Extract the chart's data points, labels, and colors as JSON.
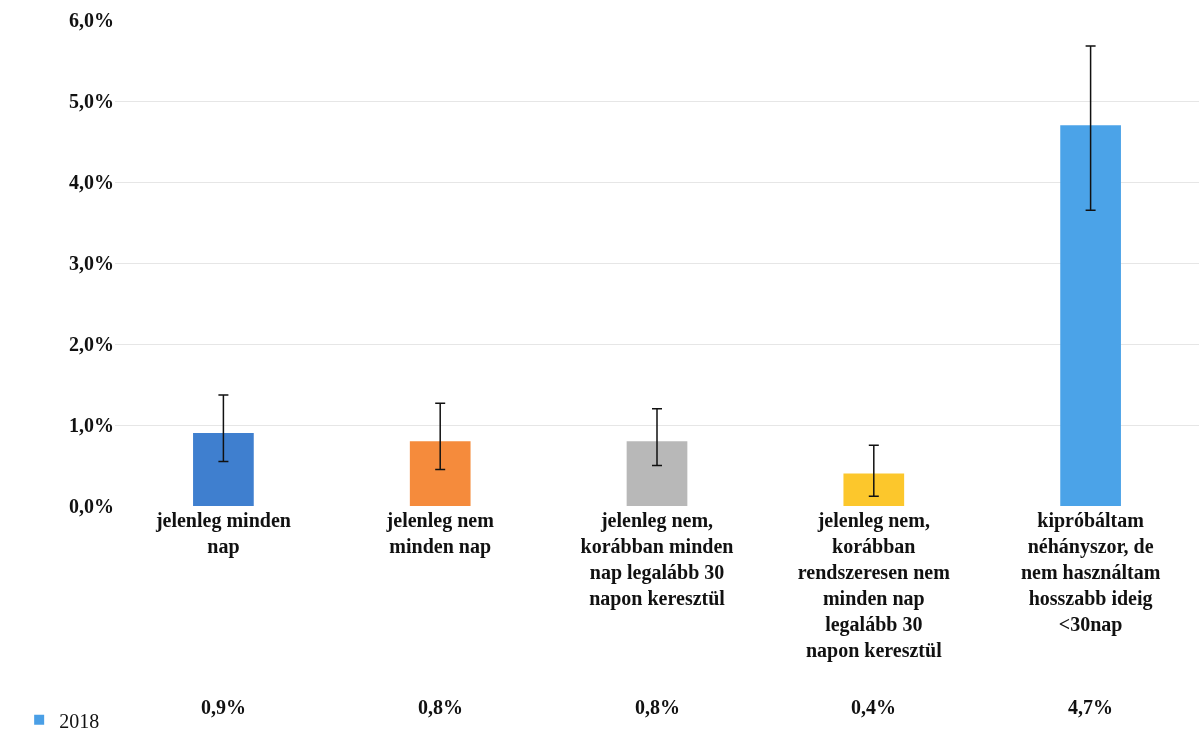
{
  "chart_data": {
    "type": "bar",
    "categories": [
      "jelenleg minden nap",
      "jelenleg nem minden nap",
      "jelenleg nem, korábban minden nap legalább 30 napon keresztül",
      "jelenleg nem, korábban rendszeresen nem minden nap legalább 30 napon keresztül",
      "kipróbáltam néhányszor, de nem használtam hosszabb ideig <30nap"
    ],
    "series": [
      {
        "name": "2018",
        "color": "#4a9fe6",
        "colors": [
          "#3f7fcf",
          "#f58b3c",
          "#b8b8b8",
          "#fcc72c",
          "#4ba3e8"
        ],
        "values": [
          0.9,
          0.8,
          0.8,
          0.4,
          4.7
        ],
        "value_labels": [
          "0,9%",
          "0,8%",
          "0,8%",
          "0,4%",
          "4,7%"
        ],
        "errors": [
          [
            0.55,
            1.37
          ],
          [
            0.45,
            1.27
          ],
          [
            0.5,
            1.2
          ],
          [
            0.12,
            0.75
          ],
          [
            3.65,
            5.68
          ]
        ]
      }
    ],
    "ylim": [
      0,
      6
    ],
    "yticks": [
      {
        "value": 0,
        "label": "0,0%"
      },
      {
        "value": 1,
        "label": "1,0%"
      },
      {
        "value": 2,
        "label": "2,0%"
      },
      {
        "value": 3,
        "label": "3,0%"
      },
      {
        "value": 4,
        "label": "4,0%"
      },
      {
        "value": 5,
        "label": "5,0%"
      },
      {
        "value": 6,
        "label": "6,0%"
      }
    ],
    "grid": "y",
    "legend": "bottom left"
  }
}
